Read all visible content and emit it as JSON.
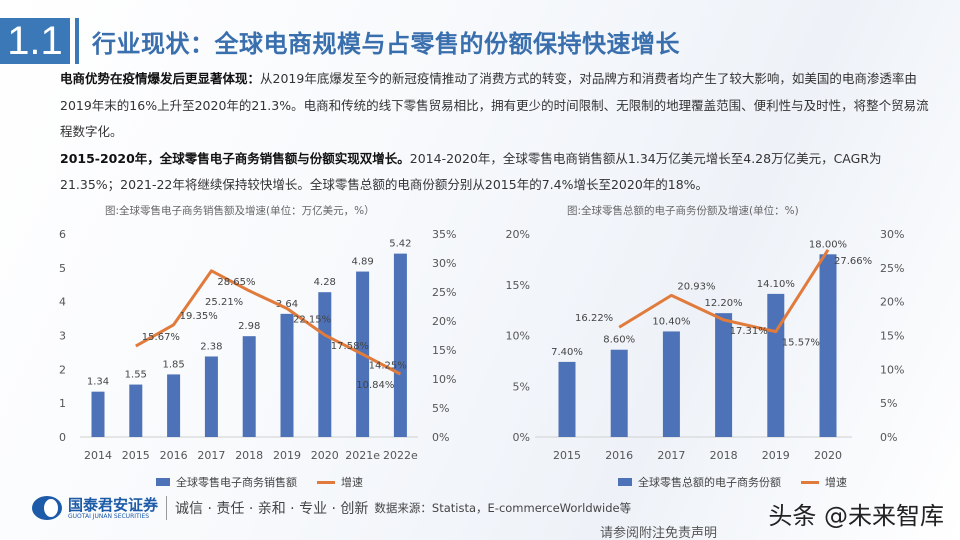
{
  "header": {
    "section_number": "1.1",
    "title": "行业现状：全球电商规模与占零售的份额保持快速增长"
  },
  "body": {
    "p1_bold": "电商优势在疫情爆发后更显著体现：",
    "p1_text": "从2019年底爆发至今的新冠疫情推动了消费方式的转变，对品牌方和消费者均产生了较大影响，如美国的电商渗透率由2019年末的16%上升至2020年的21.3%。电商和传统的线下零售贸易相比，拥有更少的时间限制、无限制的地理覆盖范围、便利性与及时性，将整个贸易流程数字化。",
    "p2_bold": "2015-2020年，全球零售电子商务销售额与份额实现双增长。",
    "p2_text": "2014-2020年，全球零售电商销售额从1.34万亿美元增长至4.28万亿美元，CAGR为21.35%；2021-22年将继续保持较快增长。全球零售总额的电商份额分别从2015年的7.4%增长至2020年的18%。"
  },
  "chart_data": [
    {
      "type": "bar+line",
      "title": "图:全球零售电子商务销售额及增速(单位：万亿美元，%）",
      "categories": [
        "2014",
        "2015",
        "2016",
        "2017",
        "2018",
        "2019",
        "2020",
        "2021e",
        "2022e"
      ],
      "series": [
        {
          "name": "全球零售电子商务销售额",
          "type": "bar",
          "axis": "left",
          "values": [
            1.34,
            1.55,
            1.85,
            2.38,
            2.98,
            3.64,
            4.28,
            4.89,
            5.42
          ],
          "labels": [
            "1.34",
            "1.55",
            "1.85",
            "2.38",
            "2.98",
            "3.64",
            "4.28",
            "4.89",
            "5.42"
          ]
        },
        {
          "name": "增速",
          "type": "line",
          "axis": "right",
          "values": [
            null,
            15.67,
            19.35,
            28.65,
            25.21,
            22.15,
            17.58,
            14.25,
            10.84
          ],
          "labels": [
            "",
            "15.67%",
            "19.35%",
            "28.65%",
            "25.21%",
            "22.15%",
            "17.58%",
            "14.25%",
            "10.84%"
          ]
        }
      ],
      "left_axis": {
        "min": 0,
        "max": 6,
        "ticks": [
          "0",
          "1",
          "2",
          "3",
          "4",
          "5",
          "6"
        ]
      },
      "right_axis": {
        "min": 0,
        "max": 35,
        "ticks": [
          "0%",
          "5%",
          "10%",
          "15%",
          "20%",
          "25%",
          "30%",
          "35%"
        ]
      },
      "legend": "bottom"
    },
    {
      "type": "bar+line",
      "title": "图:全球零售总额的电子商务份额及增速(单位：%)",
      "categories": [
        "2015",
        "2016",
        "2017",
        "2018",
        "2019",
        "2020"
      ],
      "series": [
        {
          "name": "全球零售总额的电子商务份额",
          "type": "bar",
          "axis": "left",
          "values": [
            7.4,
            8.6,
            10.4,
            12.2,
            14.1,
            18.0
          ],
          "labels": [
            "7.40%",
            "8.60%",
            "10.40%",
            "12.20%",
            "14.10%",
            "18.00%"
          ]
        },
        {
          "name": "增速",
          "type": "line",
          "axis": "right",
          "values": [
            null,
            16.22,
            20.93,
            17.31,
            15.57,
            27.66
          ],
          "labels": [
            "",
            "16.22%",
            "20.93%",
            "17.31%",
            "15.57%",
            "27.66%"
          ]
        }
      ],
      "left_axis": {
        "min": 0,
        "max": 20,
        "ticks": [
          "0%",
          "5%",
          "10%",
          "15%",
          "20%"
        ]
      },
      "right_axis": {
        "min": 0,
        "max": 30,
        "ticks": [
          "0%",
          "5%",
          "10%",
          "15%",
          "20%",
          "25%",
          "30%"
        ]
      },
      "legend": "bottom"
    }
  ],
  "colors": {
    "bar": "#4e72b8",
    "line": "#e07b3c",
    "accent": "#3a78b8"
  },
  "footer": {
    "logo_cn": "国泰君安证券",
    "logo_en": "GUOTAI JUNAN SECURITIES",
    "slogan": "诚信 · 责任 · 亲和 · 专业 · 创新",
    "source": "数据来源：Statista，E-commerceWorldwide等",
    "disclaimer": "请参阅附注免责声明",
    "watermark": "头条 @未来智库"
  }
}
